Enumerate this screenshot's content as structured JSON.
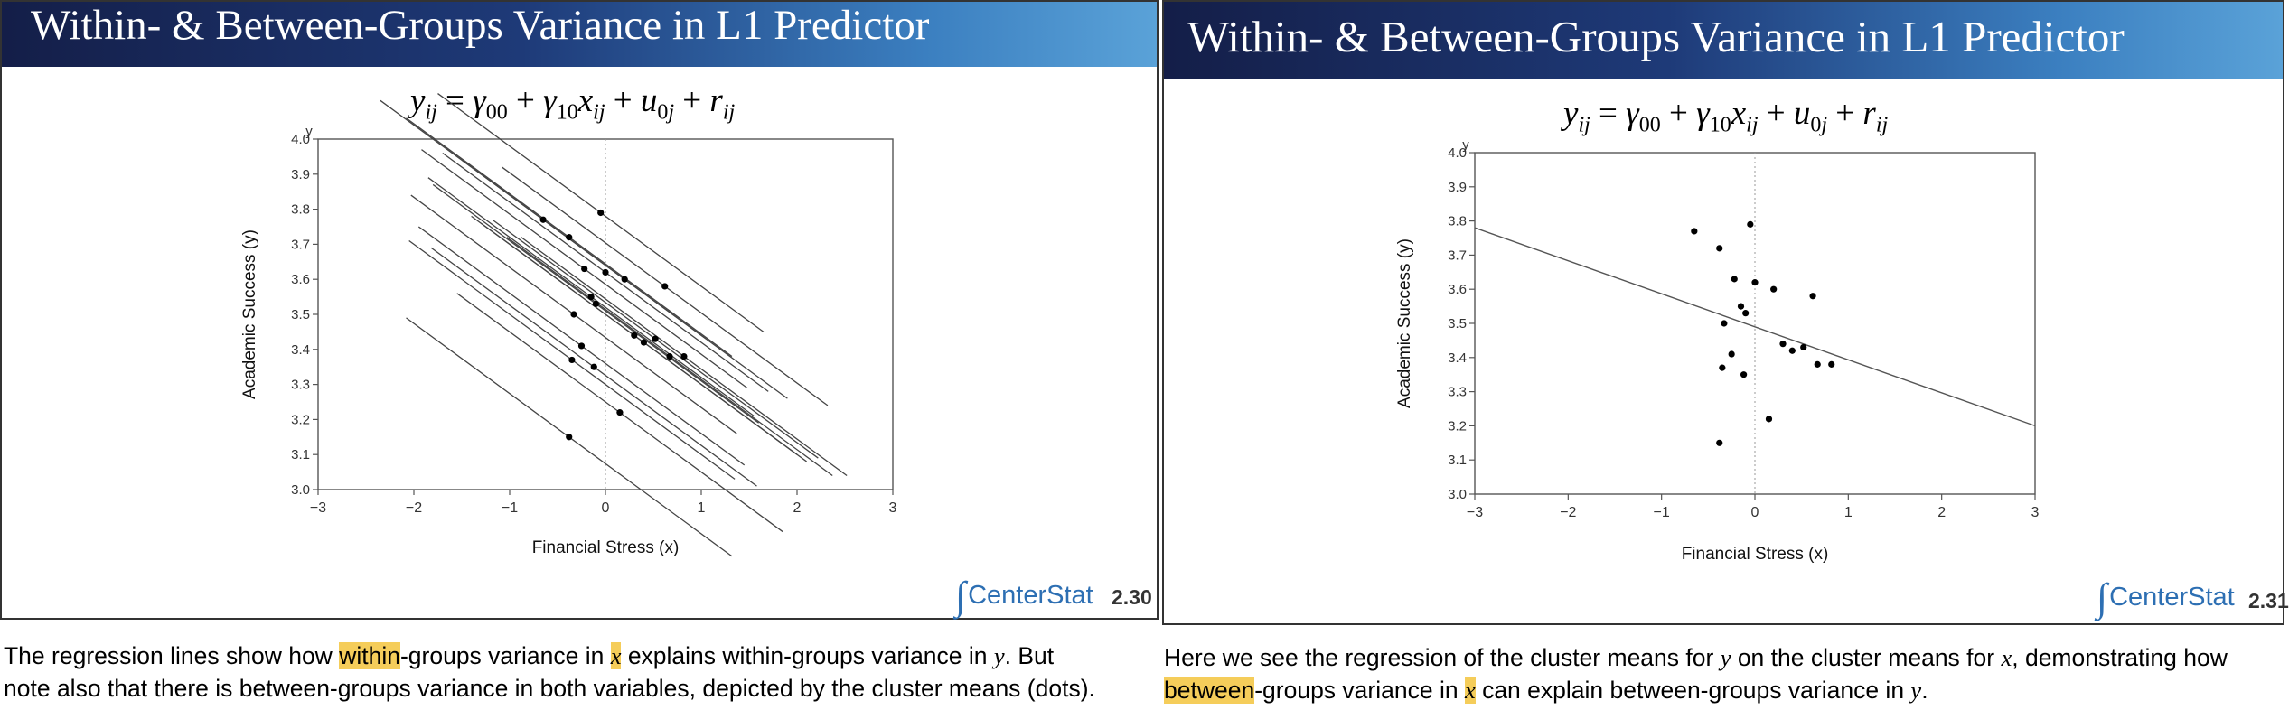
{
  "left_slide": {
    "title": "Within- & Between-Groups Variance in L1 Predictor",
    "logo_text": "CenterStat",
    "page_number": "2.30",
    "caption": {
      "line1_a": "The regression lines show how ",
      "line1_hl": "within",
      "line1_b": "-groups variance in ",
      "line1_x": "x",
      "line1_c": " explains within-groups variance in ",
      "line1_y": "y",
      "line1_d": ".  But",
      "line2": "note also that there is between-groups variance in both variables, depicted by the cluster means (dots)."
    }
  },
  "right_slide": {
    "title": "Within- & Between-Groups Variance in L1 Predictor",
    "logo_text": "CenterStat",
    "page_number": "2.31",
    "caption": {
      "line1_a": "Here we see the regression of the cluster means for ",
      "line1_y": "y",
      "line1_b": " on the cluster means for ",
      "line1_x": "x",
      "line1_c": ", demonstrating how",
      "line2_hl": "between",
      "line2_a": "-groups variance in ",
      "line2_x": "x",
      "line2_b": " can explain between-groups variance in ",
      "line2_y": "y",
      "line2_c": "."
    }
  },
  "chart_data": [
    {
      "type": "line",
      "xlabel": "Financial Stress (x)",
      "ylabel": "Academic Success (y)",
      "ylabel_letter": "y",
      "xlim": [
        -3,
        3
      ],
      "ylim": [
        3.0,
        4.0
      ],
      "xticks": [
        "−3",
        "−2",
        "−1",
        "0",
        "1",
        "2",
        "3"
      ],
      "yticks": [
        "3.0",
        "3.1",
        "3.2",
        "3.3",
        "3.4",
        "3.5",
        "3.6",
        "3.7",
        "3.8",
        "3.9",
        "4.0"
      ],
      "reference_line_x": 0,
      "slope": -0.2,
      "series": [
        {
          "mean_x": -0.65,
          "mean_y": 3.77
        },
        {
          "mean_x": -0.38,
          "mean_y": 3.72
        },
        {
          "mean_x": -0.05,
          "mean_y": 3.79
        },
        {
          "mean_x": -0.22,
          "mean_y": 3.63
        },
        {
          "mean_x": 0.0,
          "mean_y": 3.62
        },
        {
          "mean_x": 0.2,
          "mean_y": 3.6
        },
        {
          "mean_x": 0.62,
          "mean_y": 3.58
        },
        {
          "mean_x": -0.15,
          "mean_y": 3.55
        },
        {
          "mean_x": -0.1,
          "mean_y": 3.53
        },
        {
          "mean_x": -0.33,
          "mean_y": 3.5
        },
        {
          "mean_x": 0.3,
          "mean_y": 3.44
        },
        {
          "mean_x": 0.4,
          "mean_y": 3.42
        },
        {
          "mean_x": 0.52,
          "mean_y": 3.43
        },
        {
          "mean_x": -0.25,
          "mean_y": 3.41
        },
        {
          "mean_x": 0.67,
          "mean_y": 3.38
        },
        {
          "mean_x": 0.82,
          "mean_y": 3.38
        },
        {
          "mean_x": -0.35,
          "mean_y": 3.37
        },
        {
          "mean_x": -0.12,
          "mean_y": 3.35
        },
        {
          "mean_x": 0.15,
          "mean_y": 3.22
        },
        {
          "mean_x": -0.38,
          "mean_y": 3.15
        }
      ]
    },
    {
      "type": "scatter",
      "xlabel": "Financial Stress (x)",
      "ylabel": "Academic Success (y)",
      "ylabel_letter": "y",
      "xlim": [
        -3,
        3
      ],
      "ylim": [
        3.0,
        4.0
      ],
      "xticks": [
        "−3",
        "−2",
        "−1",
        "0",
        "1",
        "2",
        "3"
      ],
      "yticks": [
        "3.0",
        "3.1",
        "3.2",
        "3.3",
        "3.4",
        "3.5",
        "3.6",
        "3.7",
        "3.8",
        "3.9",
        "4.0"
      ],
      "reference_line_x": 0,
      "regression_line": {
        "x": [
          -3,
          3
        ],
        "y": [
          3.78,
          3.2
        ]
      },
      "points": [
        {
          "x": -0.65,
          "y": 3.77
        },
        {
          "x": -0.38,
          "y": 3.72
        },
        {
          "x": -0.05,
          "y": 3.79
        },
        {
          "x": -0.22,
          "y": 3.63
        },
        {
          "x": 0.0,
          "y": 3.62
        },
        {
          "x": 0.2,
          "y": 3.6
        },
        {
          "x": 0.62,
          "y": 3.58
        },
        {
          "x": -0.15,
          "y": 3.55
        },
        {
          "x": -0.1,
          "y": 3.53
        },
        {
          "x": -0.33,
          "y": 3.5
        },
        {
          "x": 0.3,
          "y": 3.44
        },
        {
          "x": 0.4,
          "y": 3.42
        },
        {
          "x": 0.52,
          "y": 3.43
        },
        {
          "x": -0.25,
          "y": 3.41
        },
        {
          "x": 0.67,
          "y": 3.38
        },
        {
          "x": 0.82,
          "y": 3.38
        },
        {
          "x": -0.35,
          "y": 3.37
        },
        {
          "x": -0.12,
          "y": 3.35
        },
        {
          "x": 0.15,
          "y": 3.22
        },
        {
          "x": -0.38,
          "y": 3.15
        }
      ]
    }
  ]
}
